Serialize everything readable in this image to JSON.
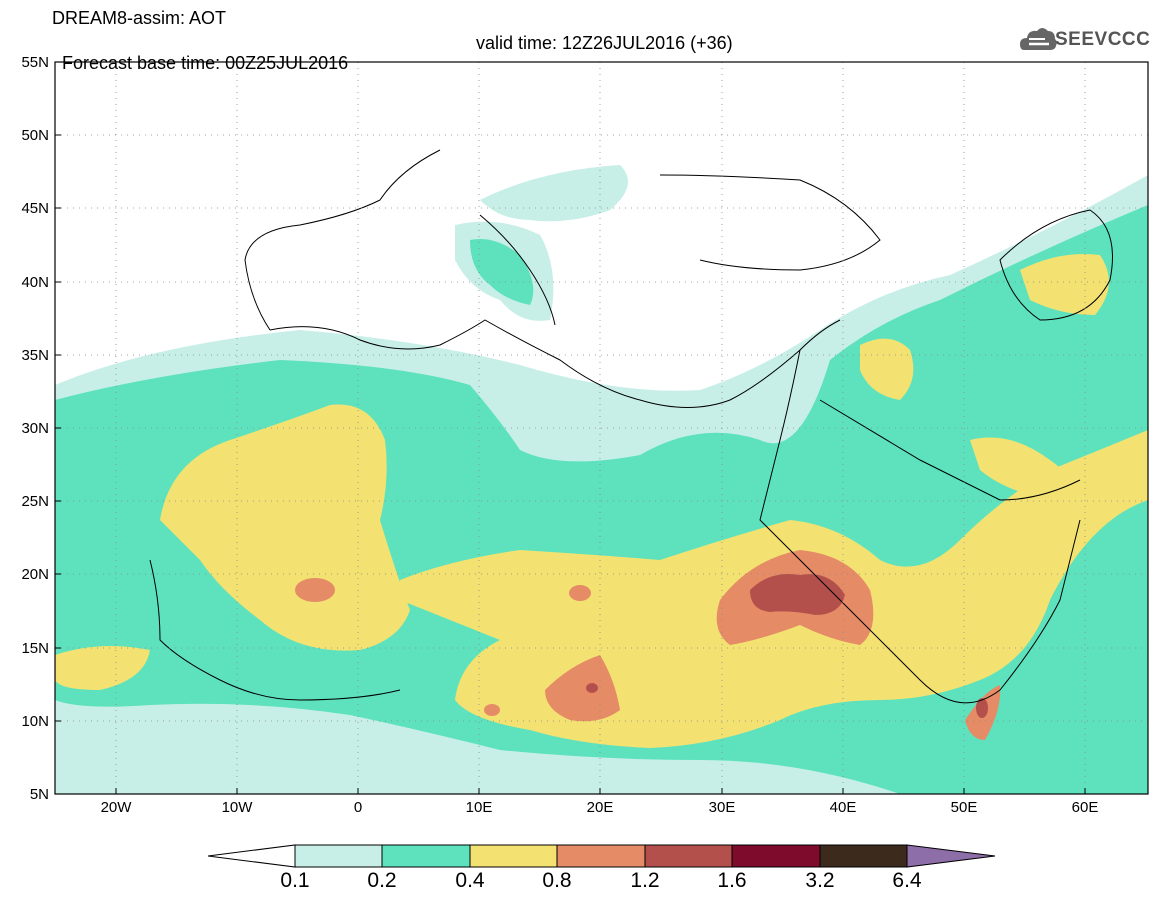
{
  "header": {
    "model_line": "DREAM8-assim: AOT",
    "base_time": "Forecast base time: 00Z25JUL2016",
    "valid_time": "valid time: 12Z26JUL2016 (+36)"
  },
  "logo": {
    "text": "SEEVCCC",
    "icon": "cloud-icon"
  },
  "map": {
    "projection": "lat-lon",
    "lon_range": [
      -25,
      65
    ],
    "lat_range": [
      5,
      55
    ],
    "lat_labels": [
      "5N",
      "10N",
      "15N",
      "20N",
      "25N",
      "30N",
      "35N",
      "40N",
      "45N",
      "50N",
      "55N"
    ],
    "lon_labels": [
      "20W",
      "10W",
      "0",
      "10E",
      "20E",
      "30E",
      "40E",
      "50E",
      "60E"
    ],
    "gridlines": "dotted"
  },
  "colorbar": {
    "levels": [
      "0.1",
      "0.2",
      "0.4",
      "0.8",
      "1.2",
      "1.6",
      "3.2",
      "6.4"
    ],
    "colors": {
      "below": "#ffffff",
      "c1": "#c7efe8",
      "c2": "#5de2bd",
      "c3": "#f3e271",
      "c4": "#e58b66",
      "c5": "#b4504b",
      "c6": "#7e0b2c",
      "c7": "#3c2a1c",
      "above": "#8e6ea8"
    }
  }
}
